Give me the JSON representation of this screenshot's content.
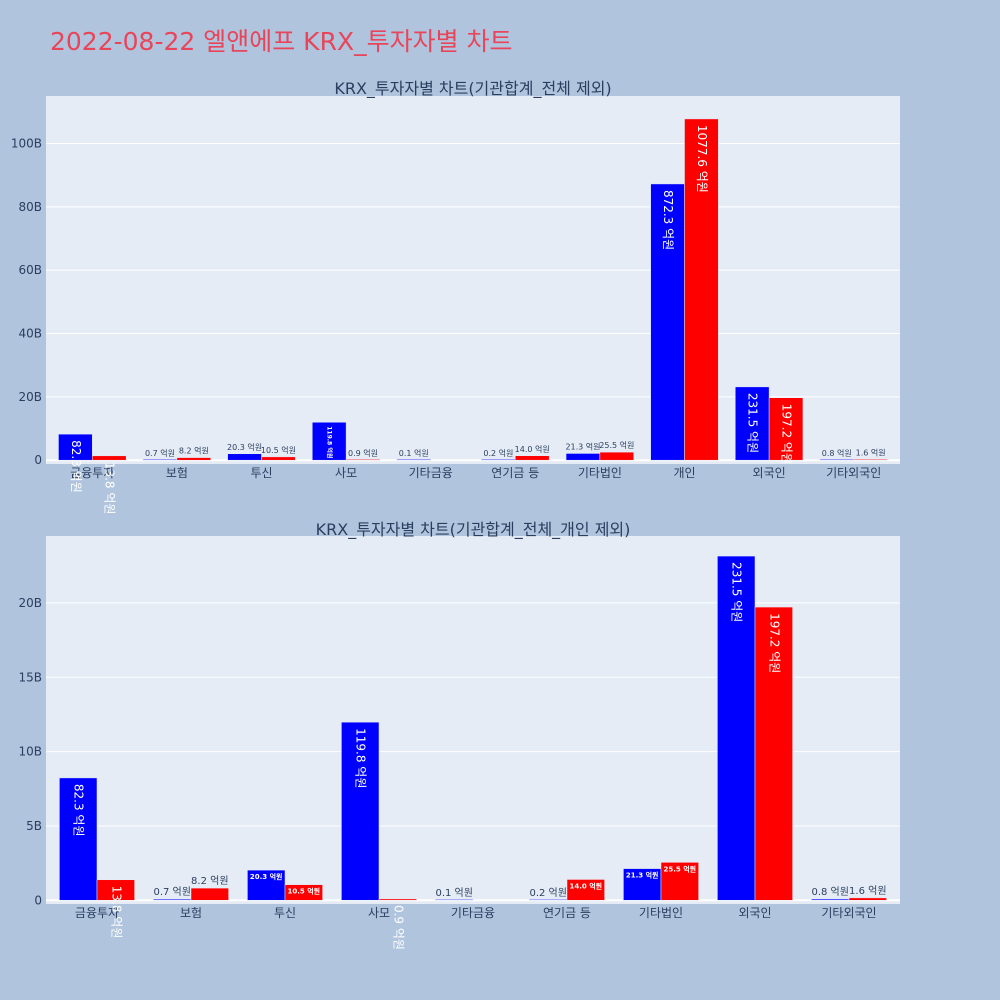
{
  "page": {
    "title": "2022-08-22 엘앤에프 KRX_투자자별 차트",
    "background": "#b0c4de",
    "title_color": "#e8455a",
    "plot_background": "#e5ecf6"
  },
  "chart_data": [
    {
      "type": "bar",
      "title": "KRX_투자자별 차트(기관합계_전체 제외)",
      "categories": [
        "금융투자",
        "보험",
        "투신",
        "사모",
        "기타금융",
        "연기금 등",
        "기타법인",
        "개인",
        "외국인",
        "기타외국인"
      ],
      "ylim": [
        -1.2,
        115
      ],
      "yticks": [
        0,
        20,
        40,
        60,
        80,
        100
      ],
      "ytick_labels": [
        "0",
        "20B",
        "40B",
        "60B",
        "80B",
        "100B"
      ],
      "series": [
        {
          "color": "#0000ff",
          "values": [
            8.23,
            0.07,
            2.03,
            11.98,
            0.01,
            0.02,
            2.13,
            87.23,
            23.15,
            0.08
          ],
          "labels": [
            "82.3 억원",
            "0.7 억원",
            "20.3 억원",
            "119.8 억원",
            "0.1 억원",
            "0.2 억원",
            "21.3 억원",
            "872.3 억원",
            "231.5 억원",
            "0.8 억원"
          ]
        },
        {
          "color": "#ff0000",
          "values": [
            1.38,
            0.82,
            1.05,
            0.09,
            null,
            1.4,
            2.55,
            107.76,
            19.72,
            0.16
          ],
          "labels": [
            "13.8 억원",
            "8.2 억원",
            "10.5 억원",
            "0.9 억원",
            "",
            "14.0 억원",
            "25.5 억원",
            "1077.6 억원",
            "197.2 억원",
            "1.6 억원"
          ]
        }
      ]
    },
    {
      "type": "bar",
      "title": "KRX_투자자별 차트(기관합계_전체_개인 제외)",
      "categories": [
        "금융투자",
        "보험",
        "투신",
        "사모",
        "기타금융",
        "연기금 등",
        "기타법인",
        "외국인",
        "기타외국인"
      ],
      "ylim": [
        -0.25,
        24.5
      ],
      "yticks": [
        0,
        5,
        10,
        15,
        20
      ],
      "ytick_labels": [
        "0",
        "5B",
        "10B",
        "15B",
        "20B"
      ],
      "series": [
        {
          "color": "#0000ff",
          "values": [
            8.23,
            0.07,
            2.03,
            11.98,
            0.01,
            0.02,
            2.13,
            23.15,
            0.08
          ],
          "labels": [
            "82.3 억원",
            "0.7 억원",
            "20.3 억원",
            "119.8 억원",
            "0.1 억원",
            "0.2 억원",
            "21.3 억원",
            "231.5 억원",
            "0.8 억원"
          ]
        },
        {
          "color": "#ff0000",
          "values": [
            1.38,
            0.82,
            1.05,
            0.09,
            null,
            1.4,
            2.55,
            19.72,
            0.16
          ],
          "labels": [
            "13.8 억원",
            "8.2 억원",
            "10.5 억원",
            "0.9 억원",
            "",
            "14.0 억원",
            "25.5 억원",
            "197.2 억원",
            "1.6 억원"
          ]
        }
      ]
    }
  ]
}
